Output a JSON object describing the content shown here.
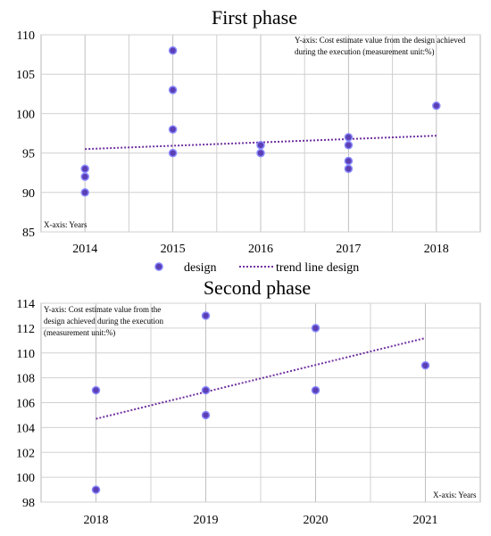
{
  "chart_data": [
    {
      "type": "scatter",
      "title": "First phase",
      "x_ticks": [
        "2014",
        "2015",
        "2016",
        "2017",
        "2018"
      ],
      "y_ticks": [
        "85",
        "90",
        "95",
        "100",
        "105",
        "110"
      ],
      "ylim": [
        85,
        110
      ],
      "xlim": [
        2013.5,
        2018.5
      ],
      "grid": true,
      "ylabel_note": "Y-axis: Cost estimate value from the design achieved during the execution (measurement unit:%)",
      "ylabel_note_lines": [
        "Y-axis: Cost estimate value from the design achieved",
        "during the execution (measurement unit:%)"
      ],
      "xlabel_note": "X-axis: Years",
      "series": [
        {
          "name": "design",
          "color": "#5b3fb5",
          "points": [
            {
              "x": 2014,
              "y": 93
            },
            {
              "x": 2014,
              "y": 92
            },
            {
              "x": 2014,
              "y": 90
            },
            {
              "x": 2015,
              "y": 108
            },
            {
              "x": 2015,
              "y": 103
            },
            {
              "x": 2015,
              "y": 98
            },
            {
              "x": 2015,
              "y": 95
            },
            {
              "x": 2016,
              "y": 96
            },
            {
              "x": 2016,
              "y": 95
            },
            {
              "x": 2017,
              "y": 97
            },
            {
              "x": 2017,
              "y": 96
            },
            {
              "x": 2017,
              "y": 94
            },
            {
              "x": 2017,
              "y": 93
            },
            {
              "x": 2018,
              "y": 101
            }
          ]
        }
      ],
      "trend": {
        "name": "trend line design",
        "color": "#7030a0",
        "x": [
          2014,
          2018
        ],
        "y": [
          95.5,
          97.2
        ]
      },
      "legend": {
        "position": "bottom",
        "items": [
          "design",
          "trend line design"
        ]
      }
    },
    {
      "type": "scatter",
      "title": "Second phase",
      "x_ticks": [
        "2018",
        "2019",
        "2020",
        "2021"
      ],
      "y_ticks": [
        "98",
        "100",
        "102",
        "104",
        "106",
        "108",
        "110",
        "112",
        "114"
      ],
      "ylim": [
        98,
        114
      ],
      "xlim": [
        2017.5,
        2021.5
      ],
      "grid": true,
      "ylabel_note": "Y-axis: Cost estimate value from the design achieved during the execution (measurement unit:%)",
      "ylabel_note_lines": [
        "Y-axis: Cost estimate value from the",
        "design achieved during the execution",
        "(measurement unit:%)"
      ],
      "xlabel_note": "X-axis: Years",
      "series": [
        {
          "name": "design",
          "color": "#5b3fb5",
          "points": [
            {
              "x": 2018,
              "y": 107
            },
            {
              "x": 2018,
              "y": 99
            },
            {
              "x": 2019,
              "y": 113
            },
            {
              "x": 2019,
              "y": 107
            },
            {
              "x": 2019,
              "y": 105
            },
            {
              "x": 2020,
              "y": 112
            },
            {
              "x": 2020,
              "y": 107
            },
            {
              "x": 2021,
              "y": 109
            }
          ]
        }
      ],
      "trend": {
        "color": "#7030a0",
        "x": [
          2018,
          2021
        ],
        "y": [
          104.7,
          111.2
        ]
      }
    }
  ]
}
